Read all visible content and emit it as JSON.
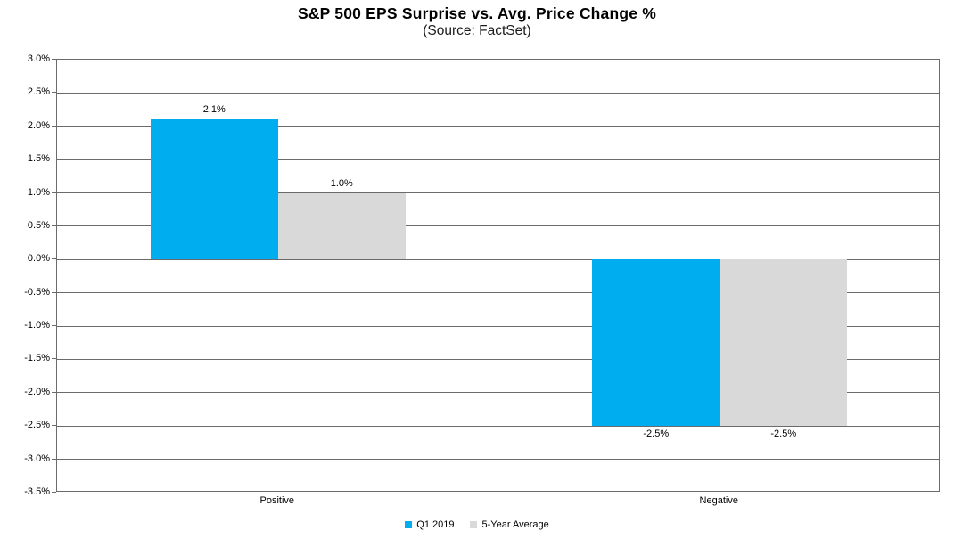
{
  "title": "S&P 500 EPS Surprise vs. Avg. Price Change %",
  "subtitle": "(Source: FactSet)",
  "chart_data": {
    "type": "bar",
    "title": "S&P 500 EPS Surprise vs. Avg. Price Change %",
    "subtitle": "(Source: FactSet)",
    "categories": [
      "Positive",
      "Negative"
    ],
    "series": [
      {
        "name": "Q1 2019",
        "color": "#00AEEF",
        "values": [
          2.1,
          -2.5
        ],
        "labels": [
          "2.1%",
          "-2.5%"
        ]
      },
      {
        "name": "5-Year Average",
        "color": "#D9D9D9",
        "values": [
          1.0,
          -2.5
        ],
        "labels": [
          "1.0%",
          "-2.5%"
        ]
      }
    ],
    "y_axis": {
      "min": -3.5,
      "max": 3.0,
      "step": 0.5,
      "tick_labels": [
        "3.0%",
        "2.5%",
        "2.0%",
        "1.5%",
        "1.0%",
        "0.5%",
        "0.0%",
        "-0.5%",
        "-1.0%",
        "-1.5%",
        "-2.0%",
        "-2.5%",
        "-3.0%",
        "-3.5%"
      ]
    },
    "grid": true,
    "legend_position": "bottom",
    "colors": {
      "gridline": "#6b6b6b",
      "text": "#000000",
      "background": "#ffffff"
    }
  }
}
